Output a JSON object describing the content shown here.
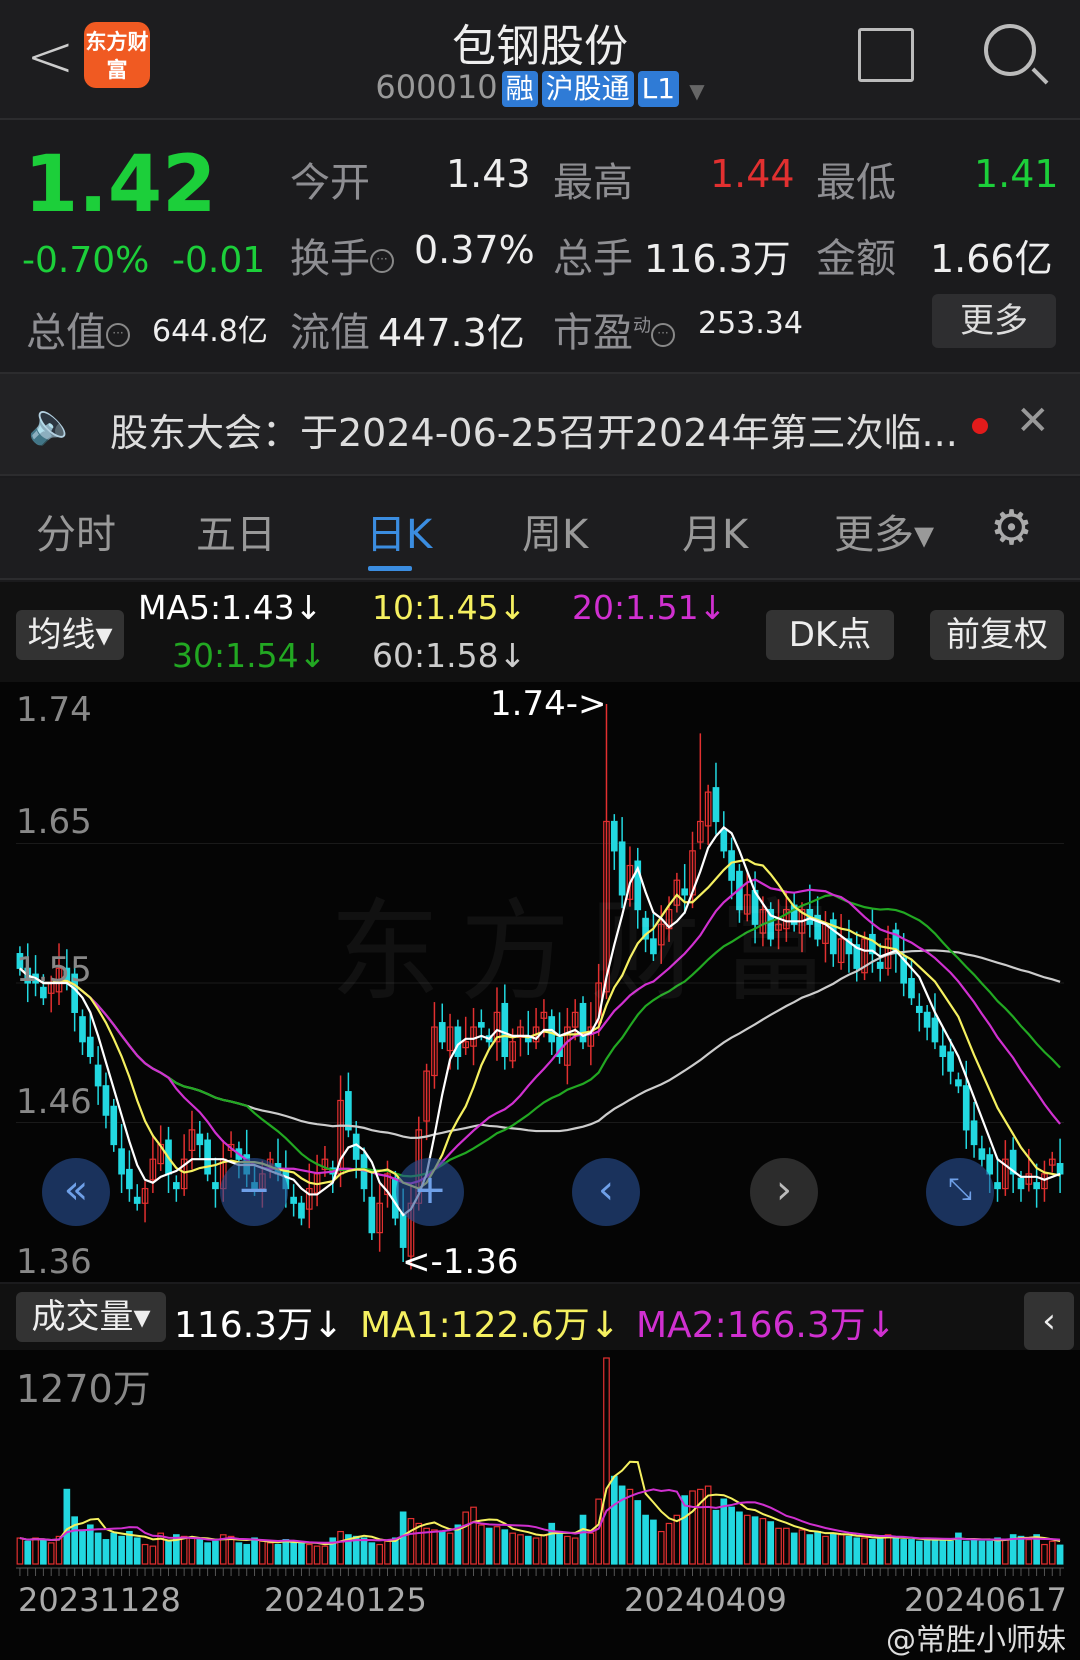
{
  "header": {
    "back": "<",
    "logo": "东方财富",
    "title": "包钢股份",
    "code": "600010",
    "tags": [
      "融",
      "沪股通",
      "L1"
    ],
    "dropdown": "▼"
  },
  "quote": {
    "price": "1.42",
    "pct": "-0.70%",
    "change": "-0.01",
    "open_label": "今开",
    "open": "1.43",
    "high_label": "最高",
    "high": "1.44",
    "low_label": "最低",
    "low": "1.41",
    "turnover_label": "换手",
    "turnover": "0.37%",
    "volume_label": "总手",
    "volume": "116.3万",
    "amount_label": "金额",
    "amount": "1.66亿",
    "mcap_label": "总值",
    "mcap": "644.8亿",
    "float_label": "流值",
    "float": "447.3亿",
    "pe_label": "市盈",
    "pe_sup": "动",
    "pe": "253.34",
    "more": "更多",
    "colors": {
      "up": "#e23030",
      "down": "#1ccf3a"
    }
  },
  "news": {
    "text": "股东大会：于2024-06-25召开2024年第三次临...",
    "close": "✕"
  },
  "tabs": [
    "分时",
    "五日",
    "日K",
    "周K",
    "月K",
    "更多▾"
  ],
  "active_tab": "日K",
  "ma_panel": {
    "selector": "均线▾",
    "ma5": "MA5:1.43↓",
    "ma10": "10:1.45↓",
    "ma20": "20:1.51↓",
    "ma30": "30:1.54↓",
    "ma60": "60:1.58↓",
    "dk": "DK点",
    "adjust": "前复权",
    "colors": {
      "ma5": "#ffffff",
      "ma10": "#f5f060",
      "ma20": "#d030d0",
      "ma30": "#22a822",
      "ma60": "#cccccc"
    }
  },
  "chart_data": [
    {
      "type": "candlestick",
      "yticks": [
        "1.74",
        "1.65",
        "1.55",
        "1.46",
        "1.36"
      ],
      "ylim": [
        1.36,
        1.74
      ],
      "max_label": "1.74->",
      "min_label": "<-1.36",
      "watermark": "东方财富",
      "closes": [
        1.56,
        1.55,
        1.55,
        1.54,
        1.55,
        1.56,
        1.55,
        1.53,
        1.51,
        1.5,
        1.48,
        1.46,
        1.44,
        1.42,
        1.41,
        1.4,
        1.41,
        1.43,
        1.44,
        1.42,
        1.41,
        1.43,
        1.45,
        1.44,
        1.42,
        1.41,
        1.43,
        1.44,
        1.43,
        1.42,
        1.41,
        1.42,
        1.43,
        1.42,
        1.41,
        1.4,
        1.39,
        1.41,
        1.42,
        1.43,
        1.42,
        1.47,
        1.45,
        1.43,
        1.41,
        1.38,
        1.4,
        1.42,
        1.39,
        1.37,
        1.4,
        1.45,
        1.49,
        1.52,
        1.51,
        1.52,
        1.5,
        1.51,
        1.52,
        1.52,
        1.51,
        1.53,
        1.5,
        1.51,
        1.52,
        1.51,
        1.52,
        1.53,
        1.51,
        1.5,
        1.52,
        1.53,
        1.51,
        1.52,
        1.55,
        1.66,
        1.64,
        1.61,
        1.63,
        1.6,
        1.58,
        1.57,
        1.59,
        1.6,
        1.62,
        1.61,
        1.64,
        1.66,
        1.68,
        1.66,
        1.64,
        1.62,
        1.6,
        1.61,
        1.59,
        1.6,
        1.58,
        1.59,
        1.6,
        1.59,
        1.6,
        1.59,
        1.58,
        1.59,
        1.57,
        1.58,
        1.57,
        1.56,
        1.58,
        1.57,
        1.56,
        1.58,
        1.57,
        1.55,
        1.54,
        1.53,
        1.52,
        1.51,
        1.5,
        1.49,
        1.48,
        1.45,
        1.44,
        1.43,
        1.42,
        1.41,
        1.43,
        1.42,
        1.41,
        1.42,
        1.41,
        1.42,
        1.43,
        1.42
      ]
    },
    {
      "type": "bar",
      "name": "成交量",
      "unit": "万",
      "ymax_label": "1270万",
      "ylim": [
        0,
        1270
      ],
      "values": [
        160,
        140,
        160,
        150,
        130,
        170,
        460,
        290,
        210,
        240,
        190,
        150,
        190,
        170,
        200,
        160,
        120,
        110,
        190,
        140,
        180,
        170,
        160,
        150,
        130,
        140,
        180,
        170,
        130,
        120,
        160,
        140,
        130,
        120,
        150,
        140,
        130,
        120,
        110,
        110,
        160,
        200,
        180,
        170,
        160,
        130,
        120,
        140,
        160,
        320,
        280,
        250,
        220,
        210,
        200,
        190,
        240,
        320,
        350,
        240,
        220,
        230,
        210,
        190,
        180,
        170,
        160,
        180,
        250,
        200,
        170,
        160,
        300,
        190,
        400,
        1270,
        540,
        480,
        460,
        390,
        300,
        270,
        200,
        250,
        300,
        420,
        450,
        460,
        480,
        330,
        400,
        350,
        320,
        300,
        290,
        280,
        260,
        220,
        220,
        190,
        210,
        180,
        200,
        170,
        190,
        180,
        170,
        160,
        160,
        150,
        170,
        180,
        160,
        150,
        150,
        140,
        160,
        150,
        150,
        140,
        190,
        140,
        150,
        140,
        140,
        160,
        150,
        180,
        170,
        150,
        180,
        120,
        140,
        116
      ],
      "ma1_label": "MA1:122.6万↓",
      "ma2_label": "MA2:166.3万↓",
      "current": "116.3万↓",
      "selector": "成交量▾"
    }
  ],
  "xticks": [
    "20231128",
    "20240125",
    "20240409",
    "20240617"
  ],
  "footer": {
    "watermark": "@常胜小师妹"
  }
}
